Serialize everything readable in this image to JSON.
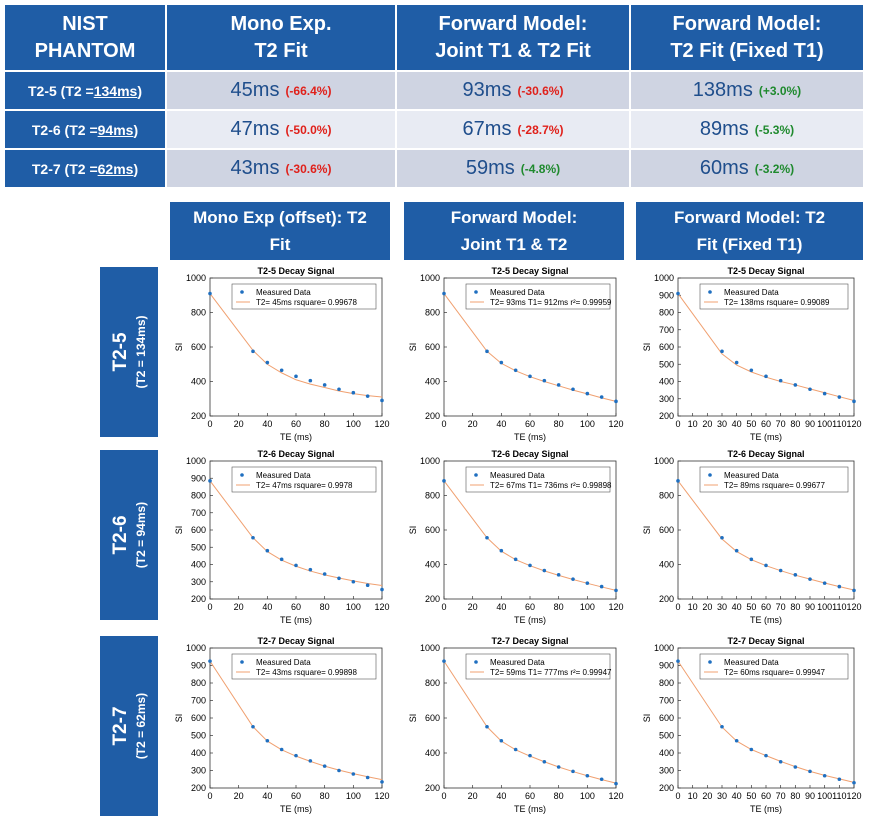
{
  "table": {
    "headers": [
      "NIST PHANTOM",
      "Mono Exp. T2 Fit",
      "Forward Model: Joint T1 & T2 Fit",
      "Forward Model: T2 Fit (Fixed T1)"
    ],
    "rows": [
      {
        "prefix": "T2-5 (T2 = ",
        "ref": "134ms",
        "suffix": ")",
        "cells": [
          {
            "value": "45ms",
            "pct": "(-66.4%)",
            "sign": "neg"
          },
          {
            "value": "93ms",
            "pct": "(-30.6%)",
            "sign": "neg"
          },
          {
            "value": "138ms",
            "pct": "(+3.0%)",
            "sign": "pos"
          }
        ]
      },
      {
        "prefix": "T2-6 (T2 = ",
        "ref": "94ms",
        "suffix": ")",
        "cells": [
          {
            "value": "47ms",
            "pct": "(-50.0%)",
            "sign": "neg"
          },
          {
            "value": "67ms",
            "pct": "(-28.7%)",
            "sign": "neg"
          },
          {
            "value": "89ms",
            "pct": "(-5.3%)",
            "sign": "pos"
          }
        ]
      },
      {
        "prefix": "T2-7 (T2 = ",
        "ref": "62ms",
        "suffix": ")",
        "cells": [
          {
            "value": "43ms",
            "pct": "(-30.6%)",
            "sign": "neg"
          },
          {
            "value": "59ms",
            "pct": "(-4.8%)",
            "sign": "pos"
          },
          {
            "value": "60ms",
            "pct": "(-3.2%)",
            "sign": "pos"
          }
        ]
      }
    ]
  },
  "grid": {
    "col_headers": [
      "Mono Exp (offset): T2 Fit",
      "Forward Model: Joint T1 & T2",
      "Forward Model: T2 Fit (Fixed T1)"
    ],
    "row_labels": [
      {
        "main": "T2-5",
        "sub": "(T2 = 134ms)"
      },
      {
        "main": "T2-6",
        "sub": "(T2 = 94ms)"
      },
      {
        "main": "T2-7",
        "sub": "(T2 = 62ms)"
      }
    ]
  },
  "colors": {
    "header_bg": "#1f5da6",
    "data_point": "#1f6fc0",
    "fit_line": "#f0a070",
    "negative": "#e0201a",
    "positive": "#1f8a2e"
  },
  "chart_data": [
    {
      "type": "line",
      "title": "T2-5 Decay Signal",
      "xlabel": "TE (ms)",
      "ylabel": "SI",
      "xlim": [
        0,
        120
      ],
      "ylim": [
        200,
        1000
      ],
      "yticks": [
        200,
        400,
        600,
        800,
        1000
      ],
      "xticks": [
        0,
        20,
        40,
        60,
        80,
        100,
        120
      ],
      "x": [
        0,
        30,
        40,
        50,
        60,
        70,
        80,
        90,
        100,
        110,
        120
      ],
      "series": [
        {
          "name": "Measured Data",
          "values": [
            910,
            575,
            510,
            465,
            430,
            405,
            380,
            355,
            335,
            315,
            290
          ]
        },
        {
          "name": "T2= 45ms   rsquare= 0.99678",
          "values": [
            910,
            580,
            500,
            450,
            410,
            385,
            365,
            345,
            330,
            318,
            310
          ]
        }
      ]
    },
    {
      "type": "line",
      "title": "T2-5 Decay Signal",
      "xlabel": "TE (ms)",
      "ylabel": "SI",
      "xlim": [
        0,
        120
      ],
      "ylim": [
        200,
        1000
      ],
      "yticks": [
        200,
        400,
        600,
        800,
        1000
      ],
      "xticks": [
        0,
        20,
        40,
        60,
        80,
        100,
        120
      ],
      "x": [
        0,
        30,
        40,
        50,
        60,
        70,
        80,
        90,
        100,
        110,
        120
      ],
      "series": [
        {
          "name": "Measured Data",
          "values": [
            910,
            575,
            510,
            465,
            430,
            405,
            380,
            355,
            330,
            310,
            285
          ]
        },
        {
          "name": "T2= 93ms T1= 912ms r²= 0.99959",
          "values": [
            910,
            575,
            505,
            462,
            428,
            400,
            375,
            350,
            328,
            305,
            285
          ]
        }
      ]
    },
    {
      "type": "line",
      "title": "T2-5 Decay Signal",
      "xlabel": "TE (ms)",
      "ylabel": "SI",
      "xlim": [
        0,
        120
      ],
      "ylim": [
        200,
        1000
      ],
      "yticks": [
        200,
        300,
        400,
        500,
        600,
        700,
        800,
        900,
        1000
      ],
      "xticks": [
        0,
        10,
        20,
        30,
        40,
        50,
        60,
        70,
        80,
        90,
        100,
        110,
        120
      ],
      "x": [
        0,
        30,
        40,
        50,
        60,
        70,
        80,
        90,
        100,
        110,
        120
      ],
      "series": [
        {
          "name": "Measured Data",
          "values": [
            910,
            575,
            510,
            465,
            430,
            405,
            380,
            355,
            330,
            310,
            285
          ]
        },
        {
          "name": "T2= 138ms   rsquare= 0.99089",
          "values": [
            910,
            560,
            495,
            455,
            425,
            400,
            380,
            357,
            335,
            312,
            290
          ]
        }
      ]
    },
    {
      "type": "line",
      "title": "T2-6 Decay Signal",
      "xlabel": "TE (ms)",
      "ylabel": "SI",
      "xlim": [
        0,
        120
      ],
      "ylim": [
        200,
        1000
      ],
      "yticks": [
        200,
        300,
        400,
        500,
        600,
        700,
        800,
        900,
        1000
      ],
      "xticks": [
        0,
        20,
        40,
        60,
        80,
        100,
        120
      ],
      "x": [
        0,
        30,
        40,
        50,
        60,
        70,
        80,
        90,
        100,
        110,
        120
      ],
      "series": [
        {
          "name": "Measured Data",
          "values": [
            885,
            555,
            480,
            430,
            395,
            370,
            345,
            320,
            300,
            280,
            255
          ]
        },
        {
          "name": "T2= 47ms   rsquare= 0.9978",
          "values": [
            885,
            555,
            475,
            425,
            390,
            362,
            340,
            322,
            305,
            290,
            278
          ]
        }
      ]
    },
    {
      "type": "line",
      "title": "T2-6 Decay Signal",
      "xlabel": "TE (ms)",
      "ylabel": "SI",
      "xlim": [
        0,
        120
      ],
      "ylim": [
        200,
        1000
      ],
      "yticks": [
        200,
        400,
        600,
        800,
        1000
      ],
      "xticks": [
        0,
        20,
        40,
        60,
        80,
        100,
        120
      ],
      "x": [
        0,
        30,
        40,
        50,
        60,
        70,
        80,
        90,
        100,
        110,
        120
      ],
      "series": [
        {
          "name": "Measured Data",
          "values": [
            885,
            555,
            480,
            430,
            395,
            365,
            340,
            315,
            292,
            272,
            250
          ]
        },
        {
          "name": "T2= 67ms T1= 736ms r²= 0.99898",
          "values": [
            885,
            555,
            477,
            428,
            393,
            363,
            337,
            313,
            291,
            270,
            250
          ]
        }
      ]
    },
    {
      "type": "line",
      "title": "T2-6 Decay Signal",
      "xlabel": "TE (ms)",
      "ylabel": "SI",
      "xlim": [
        0,
        120
      ],
      "ylim": [
        200,
        1000
      ],
      "yticks": [
        200,
        400,
        600,
        800,
        1000
      ],
      "xticks": [
        0,
        10,
        20,
        30,
        40,
        50,
        60,
        70,
        80,
        90,
        100,
        110,
        120
      ],
      "x": [
        0,
        30,
        40,
        50,
        60,
        70,
        80,
        90,
        100,
        110,
        120
      ],
      "series": [
        {
          "name": "Measured Data",
          "values": [
            885,
            555,
            480,
            430,
            395,
            365,
            340,
            315,
            292,
            272,
            250
          ]
        },
        {
          "name": "T2= 89ms   rsquare= 0.99677",
          "values": [
            885,
            548,
            475,
            428,
            393,
            364,
            338,
            315,
            293,
            272,
            252
          ]
        }
      ]
    },
    {
      "type": "line",
      "title": "T2-7 Decay Signal",
      "xlabel": "TE (ms)",
      "ylabel": "SI",
      "xlim": [
        0,
        120
      ],
      "ylim": [
        200,
        1000
      ],
      "yticks": [
        200,
        300,
        400,
        500,
        600,
        700,
        800,
        900,
        1000
      ],
      "xticks": [
        0,
        20,
        40,
        60,
        80,
        100,
        120
      ],
      "x": [
        0,
        30,
        40,
        50,
        60,
        70,
        80,
        90,
        100,
        110,
        120
      ],
      "series": [
        {
          "name": "Measured Data",
          "values": [
            925,
            550,
            470,
            420,
            385,
            355,
            325,
            300,
            280,
            260,
            235
          ]
        },
        {
          "name": "T2= 43ms   rsquare= 0.99898",
          "values": [
            925,
            550,
            468,
            418,
            382,
            352,
            325,
            302,
            282,
            264,
            248
          ]
        }
      ]
    },
    {
      "type": "line",
      "title": "T2-7 Decay Signal",
      "xlabel": "TE (ms)",
      "ylabel": "SI",
      "xlim": [
        0,
        120
      ],
      "ylim": [
        200,
        1000
      ],
      "yticks": [
        200,
        400,
        600,
        800,
        1000
      ],
      "xticks": [
        0,
        20,
        40,
        60,
        80,
        100,
        120
      ],
      "x": [
        0,
        30,
        40,
        50,
        60,
        70,
        80,
        90,
        100,
        110,
        120
      ],
      "series": [
        {
          "name": "Measured Data",
          "values": [
            925,
            550,
            470,
            420,
            385,
            350,
            320,
            295,
            270,
            250,
            225
          ]
        },
        {
          "name": "T2= 59ms T1= 777ms r²= 0.99947",
          "values": [
            925,
            550,
            468,
            418,
            382,
            350,
            320,
            294,
            270,
            248,
            228
          ]
        }
      ]
    },
    {
      "type": "line",
      "title": "T2-7 Decay Signal",
      "xlabel": "TE (ms)",
      "ylabel": "SI",
      "xlim": [
        0,
        120
      ],
      "ylim": [
        200,
        1000
      ],
      "yticks": [
        200,
        300,
        400,
        500,
        600,
        700,
        800,
        900,
        1000
      ],
      "xticks": [
        0,
        10,
        20,
        30,
        40,
        50,
        60,
        70,
        80,
        90,
        100,
        110,
        120
      ],
      "x": [
        0,
        30,
        40,
        50,
        60,
        70,
        80,
        90,
        100,
        110,
        120
      ],
      "series": [
        {
          "name": "Measured Data",
          "values": [
            925,
            550,
            470,
            420,
            385,
            350,
            320,
            295,
            270,
            250,
            230
          ]
        },
        {
          "name": "T2= 60ms   rsquare= 0.99947",
          "values": [
            925,
            548,
            468,
            420,
            385,
            352,
            322,
            295,
            272,
            252,
            232
          ]
        }
      ]
    }
  ]
}
